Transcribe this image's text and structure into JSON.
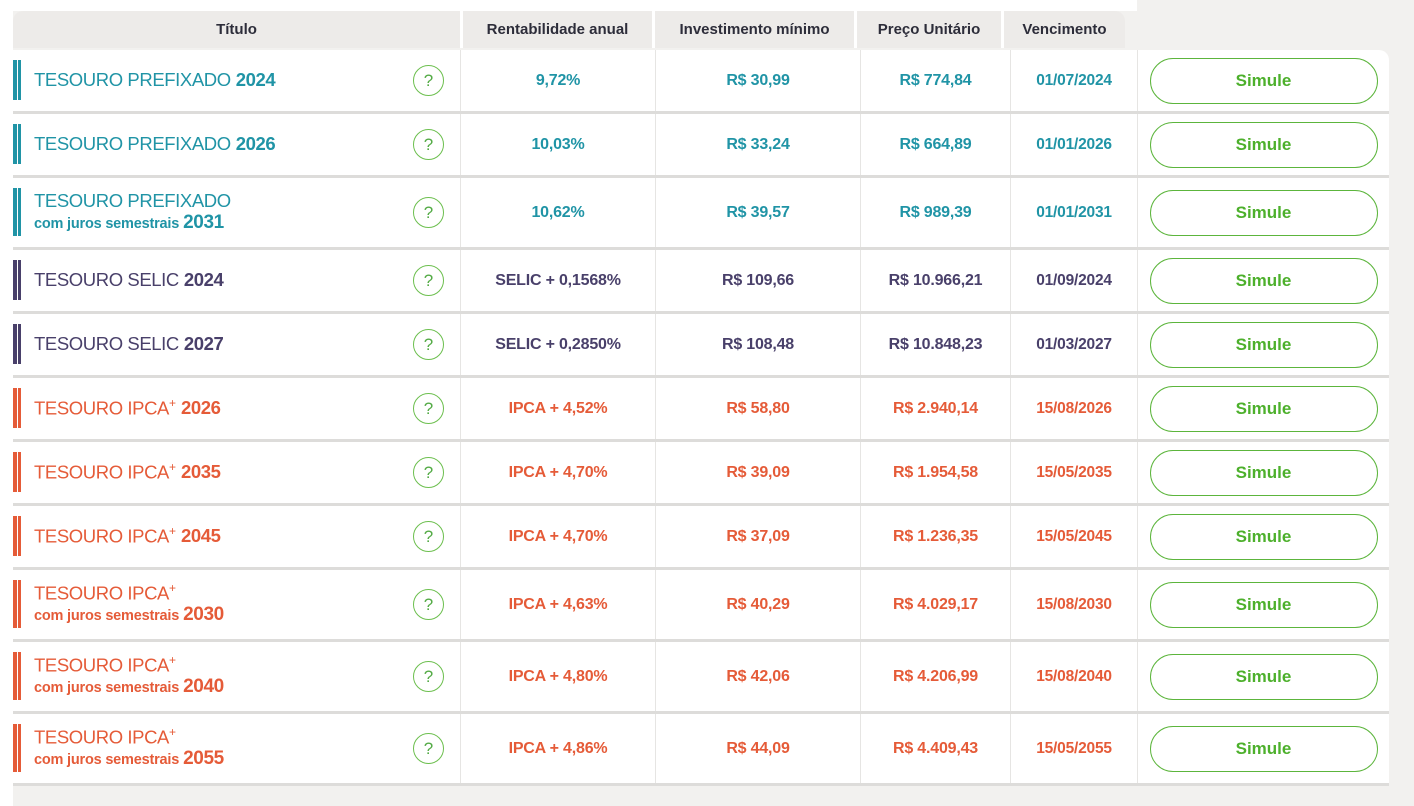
{
  "table": {
    "columns": [
      "Título",
      "Rentabilidade anual",
      "Investimento mínimo",
      "Preço Unitário",
      "Vencimento"
    ],
    "simulate_label": "Simule",
    "rows": [
      {
        "name": "TESOURO PREFIXADO",
        "plus": false,
        "sub": null,
        "year": "2024",
        "family": "prefixado",
        "rate": "9,72%",
        "min": "R$ 30,99",
        "price": "R$ 774,84",
        "maturity": "01/07/2024"
      },
      {
        "name": "TESOURO PREFIXADO",
        "plus": false,
        "sub": null,
        "year": "2026",
        "family": "prefixado",
        "rate": "10,03%",
        "min": "R$ 33,24",
        "price": "R$ 664,89",
        "maturity": "01/01/2026"
      },
      {
        "name": "TESOURO PREFIXADO",
        "plus": false,
        "sub": "com juros semestrais",
        "year": "2031",
        "family": "prefixado",
        "rate": "10,62%",
        "min": "R$ 39,57",
        "price": "R$ 989,39",
        "maturity": "01/01/2031"
      },
      {
        "name": "TESOURO SELIC",
        "plus": false,
        "sub": null,
        "year": "2024",
        "family": "selic",
        "rate": "SELIC + 0,1568%",
        "min": "R$ 109,66",
        "price": "R$ 10.966,21",
        "maturity": "01/09/2024"
      },
      {
        "name": "TESOURO SELIC",
        "plus": false,
        "sub": null,
        "year": "2027",
        "family": "selic",
        "rate": "SELIC + 0,2850%",
        "min": "R$ 108,48",
        "price": "R$ 10.848,23",
        "maturity": "01/03/2027"
      },
      {
        "name": "TESOURO IPCA",
        "plus": true,
        "sub": null,
        "year": "2026",
        "family": "ipca",
        "rate": "IPCA + 4,52%",
        "min": "R$ 58,80",
        "price": "R$ 2.940,14",
        "maturity": "15/08/2026"
      },
      {
        "name": "TESOURO IPCA",
        "plus": true,
        "sub": null,
        "year": "2035",
        "family": "ipca",
        "rate": "IPCA + 4,70%",
        "min": "R$ 39,09",
        "price": "R$ 1.954,58",
        "maturity": "15/05/2035"
      },
      {
        "name": "TESOURO IPCA",
        "plus": true,
        "sub": null,
        "year": "2045",
        "family": "ipca",
        "rate": "IPCA + 4,70%",
        "min": "R$ 37,09",
        "price": "R$ 1.236,35",
        "maturity": "15/05/2045"
      },
      {
        "name": "TESOURO IPCA",
        "plus": true,
        "sub": "com juros semestrais",
        "year": "2030",
        "family": "ipca",
        "rate": "IPCA + 4,63%",
        "min": "R$ 40,29",
        "price": "R$ 4.029,17",
        "maturity": "15/08/2030"
      },
      {
        "name": "TESOURO IPCA",
        "plus": true,
        "sub": "com juros semestrais",
        "year": "2040",
        "family": "ipca",
        "rate": "IPCA + 4,80%",
        "min": "R$ 42,06",
        "price": "R$ 4.206,99",
        "maturity": "15/08/2040"
      },
      {
        "name": "TESOURO IPCA",
        "plus": true,
        "sub": "com juros semestrais",
        "year": "2055",
        "family": "ipca",
        "rate": "IPCA + 4,86%",
        "min": "R$ 44,09",
        "price": "R$ 4.409,43",
        "maturity": "15/05/2055"
      }
    ]
  },
  "icons": {
    "help": "?",
    "plus_sup": "+"
  },
  "colors": {
    "prefixado": "#2094a6",
    "selic": "#49406a",
    "ipca": "#e55b38",
    "green_accent": "#5cb53c",
    "header_text": "#2d2d3a",
    "header_bg": "#edebe9",
    "row_bg": "#ffffff",
    "page_bg": "#f2f1ef"
  }
}
